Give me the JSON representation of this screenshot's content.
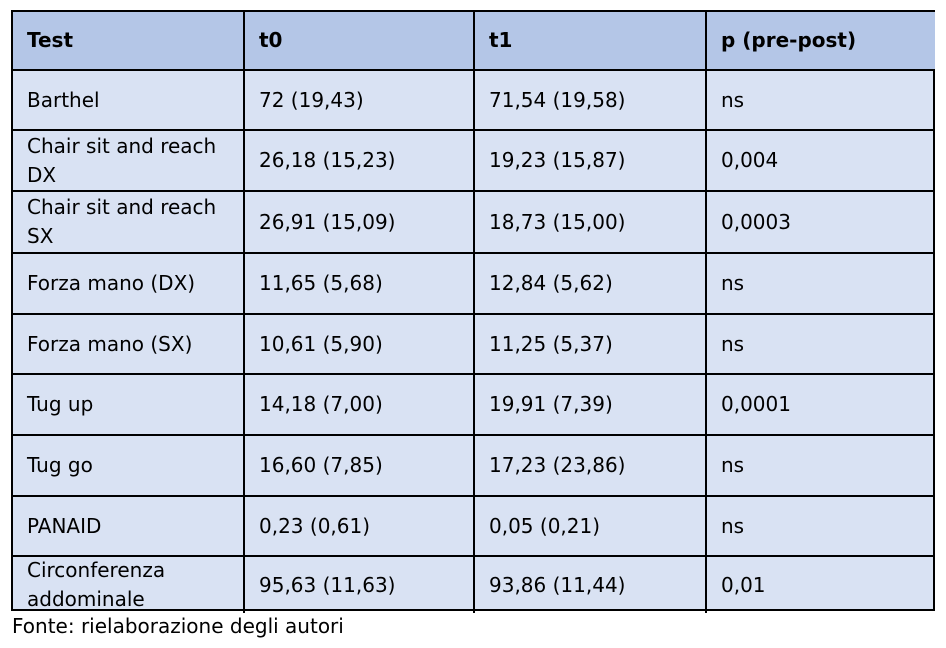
{
  "table": {
    "header": [
      "Test",
      "t0",
      "t1",
      "p (pre-post)"
    ],
    "rows": [
      [
        "Barthel",
        "72 (19,43)",
        "71,54 (19,58)",
        "ns"
      ],
      [
        "Chair sit and reach DX",
        "26,18 (15,23)",
        "19,23 (15,87)",
        "0,004"
      ],
      [
        "Chair sit and reach SX",
        "26,91 (15,09)",
        "18,73 (15,00)",
        "0,0003"
      ],
      [
        "Forza mano (DX)",
        "11,65 (5,68)",
        "12,84 (5,62)",
        "ns"
      ],
      [
        "Forza mano (SX)",
        "10,61 (5,90)",
        "11,25 (5,37)",
        "ns"
      ],
      [
        "Tug up",
        "14,18 (7,00)",
        "19,91 (7,39)",
        "0,0001"
      ],
      [
        "Tug go",
        "16,60 (7,85)",
        "17,23 (23,86)",
        "ns"
      ],
      [
        "PANAID",
        "0,23 (0,61)",
        "0,05 (0,21)",
        "ns"
      ],
      [
        "Circonferenza addominale",
        "95,63 (11,63)",
        "93,86 (11,44)",
        "0,01"
      ]
    ]
  },
  "caption": "Fonte: rielaborazione degli autori"
}
